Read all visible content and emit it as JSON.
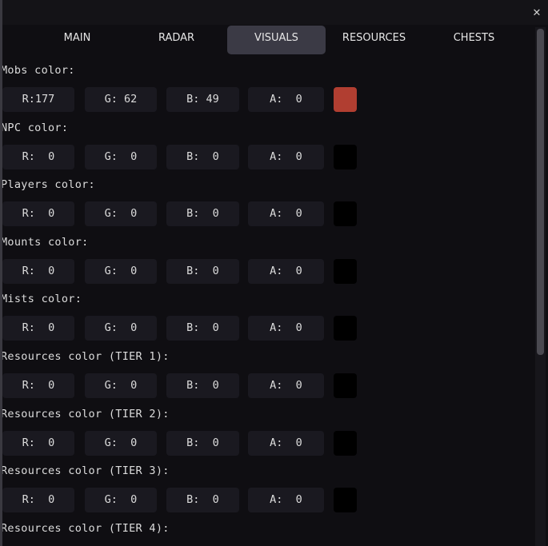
{
  "window": {
    "close_icon": "close-x"
  },
  "tabs": [
    {
      "label": "MAIN"
    },
    {
      "label": "RADAR"
    },
    {
      "label": "VISUALS",
      "active": true
    },
    {
      "label": "RESOURCES"
    },
    {
      "label": "CHESTS"
    }
  ],
  "sections": [
    {
      "label": "Mobs color:",
      "r": "R:177",
      "g": "G: 62",
      "b": "B: 49",
      "a": "A:  0",
      "swatch": "#b13e31"
    },
    {
      "label": "NPC color:",
      "r": "R:  0",
      "g": "G:  0",
      "b": "B:  0",
      "a": "A:  0",
      "swatch": "#000000"
    },
    {
      "label": "Players color:",
      "r": "R:  0",
      "g": "G:  0",
      "b": "B:  0",
      "a": "A:  0",
      "swatch": "#000000"
    },
    {
      "label": "Mounts color:",
      "r": "R:  0",
      "g": "G:  0",
      "b": "B:  0",
      "a": "A:  0",
      "swatch": "#000000"
    },
    {
      "label": "Mists color:",
      "r": "R:  0",
      "g": "G:  0",
      "b": "B:  0",
      "a": "A:  0",
      "swatch": "#000000"
    },
    {
      "label": "Resources color (TIER 1):",
      "r": "R:  0",
      "g": "G:  0",
      "b": "B:  0",
      "a": "A:  0",
      "swatch": "#000000"
    },
    {
      "label": "Resources color (TIER 2):",
      "r": "R:  0",
      "g": "G:  0",
      "b": "B:  0",
      "a": "A:  0",
      "swatch": "#000000"
    },
    {
      "label": "Resources color (TIER 3):",
      "r": "R:  0",
      "g": "G:  0",
      "b": "B:  0",
      "a": "A:  0",
      "swatch": "#000000"
    },
    {
      "label": "Resources color (TIER 4):"
    }
  ]
}
